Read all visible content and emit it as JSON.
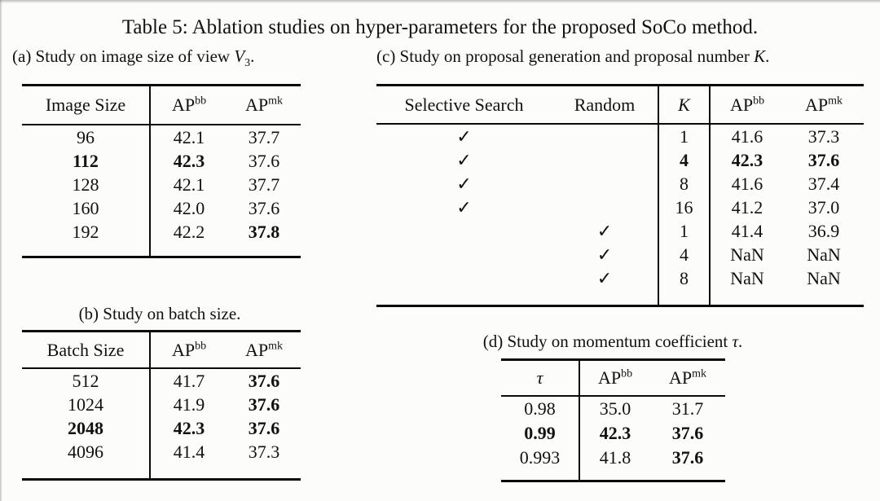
{
  "title": "Table 5: Ablation studies on hyper-parameters for the proposed SoCo method.",
  "captions": {
    "a": {
      "prefix": "(a) Study on image size of view ",
      "var": "V",
      "sub": "3",
      "suffix": "."
    },
    "b": {
      "text": "(b) Study on batch size."
    },
    "c": {
      "prefix": "(c) Study on proposal generation and proposal number ",
      "var": "K",
      "suffix": "."
    },
    "d": {
      "prefix": "(d) Study on momentum coefficient ",
      "var": "τ",
      "suffix": "."
    }
  },
  "tables": {
    "a": {
      "header": [
        {
          "text": "Image Size"
        },
        {
          "text": "AP",
          "sup": "bb"
        },
        {
          "text": "AP",
          "sup": "mk"
        }
      ],
      "rows": [
        [
          {
            "text": "96"
          },
          {
            "text": "42.1"
          },
          {
            "text": "37.7"
          }
        ],
        [
          {
            "text": "112",
            "bold": true
          },
          {
            "text": "42.3",
            "bold": true
          },
          {
            "text": "37.6"
          }
        ],
        [
          {
            "text": "128"
          },
          {
            "text": "42.1"
          },
          {
            "text": "37.7"
          }
        ],
        [
          {
            "text": "160"
          },
          {
            "text": "42.0"
          },
          {
            "text": "37.6"
          }
        ],
        [
          {
            "text": "192"
          },
          {
            "text": "42.2"
          },
          {
            "text": "37.8",
            "bold": true
          }
        ]
      ]
    },
    "b": {
      "header": [
        {
          "text": "Batch Size"
        },
        {
          "text": "AP",
          "sup": "bb"
        },
        {
          "text": "AP",
          "sup": "mk"
        }
      ],
      "rows": [
        [
          {
            "text": "512"
          },
          {
            "text": "41.7"
          },
          {
            "text": "37.6",
            "bold": true
          }
        ],
        [
          {
            "text": "1024"
          },
          {
            "text": "41.9"
          },
          {
            "text": "37.6",
            "bold": true
          }
        ],
        [
          {
            "text": "2048",
            "bold": true
          },
          {
            "text": "42.3",
            "bold": true
          },
          {
            "text": "37.6",
            "bold": true
          }
        ],
        [
          {
            "text": "4096"
          },
          {
            "text": "41.4"
          },
          {
            "text": "37.3"
          }
        ]
      ]
    },
    "c": {
      "header": [
        {
          "text": "Selective Search"
        },
        {
          "text": "Random"
        },
        {
          "text": "K",
          "italic": true
        },
        {
          "text": "AP",
          "sup": "bb"
        },
        {
          "text": "AP",
          "sup": "mk"
        }
      ],
      "rows": [
        [
          {
            "text": "✓"
          },
          {
            "text": ""
          },
          {
            "text": "1"
          },
          {
            "text": "41.6"
          },
          {
            "text": "37.3"
          }
        ],
        [
          {
            "text": "✓"
          },
          {
            "text": ""
          },
          {
            "text": "4",
            "bold": true
          },
          {
            "text": "42.3",
            "bold": true
          },
          {
            "text": "37.6",
            "bold": true
          }
        ],
        [
          {
            "text": "✓"
          },
          {
            "text": ""
          },
          {
            "text": "8"
          },
          {
            "text": "41.6"
          },
          {
            "text": "37.4"
          }
        ],
        [
          {
            "text": "✓"
          },
          {
            "text": ""
          },
          {
            "text": "16"
          },
          {
            "text": "41.2"
          },
          {
            "text": "37.0"
          }
        ],
        [
          {
            "text": ""
          },
          {
            "text": "✓"
          },
          {
            "text": "1"
          },
          {
            "text": "41.4"
          },
          {
            "text": "36.9"
          }
        ],
        [
          {
            "text": ""
          },
          {
            "text": "✓"
          },
          {
            "text": "4"
          },
          {
            "text": "NaN"
          },
          {
            "text": "NaN"
          }
        ],
        [
          {
            "text": ""
          },
          {
            "text": "✓"
          },
          {
            "text": "8"
          },
          {
            "text": "NaN"
          },
          {
            "text": "NaN"
          }
        ]
      ]
    },
    "d": {
      "header": [
        {
          "text": "τ",
          "italic": true
        },
        {
          "text": "AP",
          "sup": "bb"
        },
        {
          "text": "AP",
          "sup": "mk"
        }
      ],
      "rows": [
        [
          {
            "text": "0.98"
          },
          {
            "text": "35.0"
          },
          {
            "text": "31.7"
          }
        ],
        [
          {
            "text": "0.99",
            "bold": true
          },
          {
            "text": "42.3",
            "bold": true
          },
          {
            "text": "37.6",
            "bold": true
          }
        ],
        [
          {
            "text": "0.993"
          },
          {
            "text": "41.8"
          },
          {
            "text": "37.6",
            "bold": true
          }
        ]
      ]
    }
  }
}
